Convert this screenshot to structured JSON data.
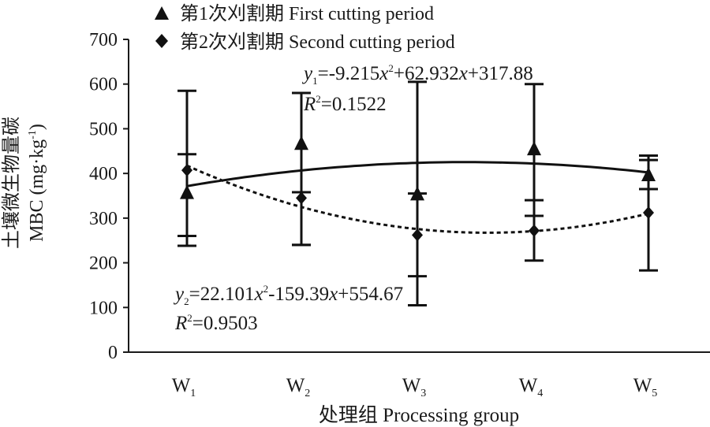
{
  "chart_data": {
    "type": "line",
    "xlabel": "处理组 Processing group",
    "ylabel_cn": "土壤微生物量碳",
    "ylabel_en": "MBC (mg·kg",
    "ylabel_sup": "-1",
    "ylabel_close": ")",
    "ylim": [
      0,
      700
    ],
    "yticks": [
      0,
      100,
      200,
      300,
      400,
      500,
      600,
      700
    ],
    "categories": [
      {
        "base": "W",
        "sub": "1"
      },
      {
        "base": "W",
        "sub": "2"
      },
      {
        "base": "W",
        "sub": "3"
      },
      {
        "base": "W",
        "sub": "4"
      },
      {
        "base": "W",
        "sub": "5"
      }
    ],
    "grid": false,
    "legend_position": "top-left",
    "series": [
      {
        "name": "第1次刈割期 First cutting period",
        "marker": "triangle",
        "values": [
          355,
          465,
          352,
          453,
          395
        ],
        "error_low": [
          238,
          240,
          105,
          305,
          365
        ],
        "error_high": [
          585,
          580,
          605,
          600,
          440
        ],
        "trend": {
          "type": "quadratic",
          "a": -9.215,
          "b": 62.932,
          "c": 317.88,
          "style": "solid"
        }
      },
      {
        "name": "第2次刈割期 Second cutting period",
        "marker": "diamond",
        "values": [
          407,
          345,
          262,
          272,
          312
        ],
        "error_low": [
          260,
          240,
          170,
          205,
          183
        ],
        "error_high": [
          443,
          358,
          355,
          340,
          430
        ],
        "trend": {
          "type": "quadratic",
          "a": 22.101,
          "b": -159.39,
          "c": 554.67,
          "style": "dashed"
        }
      }
    ],
    "annotations": {
      "eq1": "y1=-9.215x2+62.932x+317.88",
      "eq1_parts": {
        "y": "y",
        "sub": "1",
        "a": "=-9.215",
        "x1": "x",
        "sup": "2",
        "b": "+62.932",
        "x2": "x",
        "c": "+317.88"
      },
      "r1": {
        "R": "R",
        "sup": "2",
        "val": "=0.1522"
      },
      "eq2_parts": {
        "y": "y",
        "sub": "2",
        "a": "=22.101",
        "x1": "x",
        "sup": "2",
        "b": "-159.39",
        "x2": "x",
        "c": "+554.67"
      },
      "r2": {
        "R": "R",
        "sup": "2",
        "val": "=0.9503"
      }
    }
  }
}
